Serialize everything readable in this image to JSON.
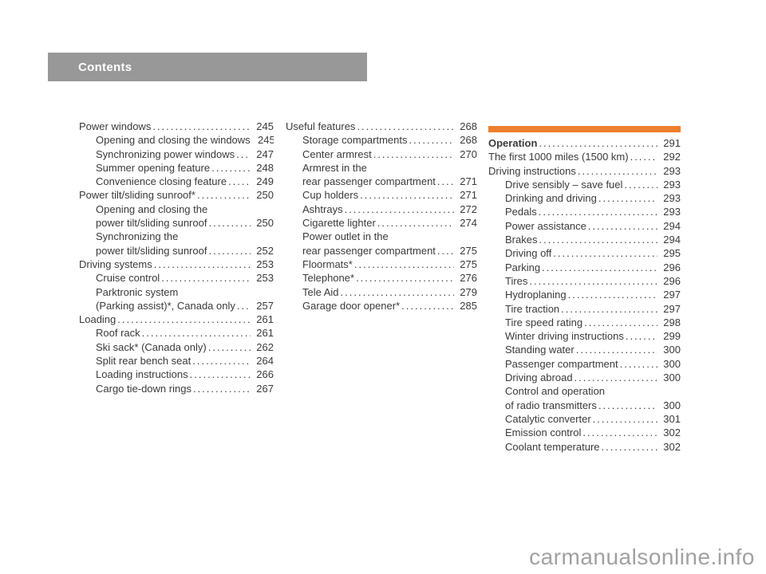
{
  "header": {
    "title": "Contents"
  },
  "watermark": "carmanualsonline.info",
  "colors": {
    "header_bg": "#989898",
    "header_text": "#ffffff",
    "accent_orange": "#ee7f2d",
    "body_text": "#3a3a3a",
    "watermark_text": "#a1a1a1"
  },
  "columns": [
    {
      "accent_bar": false,
      "entries": [
        {
          "label": "Power windows",
          "page": "245",
          "indent": 0
        },
        {
          "label": "Opening and closing the windows",
          "page": "245",
          "indent": 1
        },
        {
          "label": "Synchronizing power windows",
          "page": "247",
          "indent": 1
        },
        {
          "label": "Summer opening feature",
          "page": "248",
          "indent": 1
        },
        {
          "label": "Convenience closing feature",
          "page": "249",
          "indent": 1
        },
        {
          "label": "Power tilt/sliding sunroof*",
          "page": "250",
          "indent": 0
        },
        {
          "label": "Opening and closing the",
          "page": null,
          "indent": 1
        },
        {
          "label": "power tilt/sliding sunroof",
          "page": "250",
          "indent": 1
        },
        {
          "label": "Synchronizing the",
          "page": null,
          "indent": 1
        },
        {
          "label": "power tilt/sliding sunroof",
          "page": "252",
          "indent": 1
        },
        {
          "label": "Driving systems",
          "page": "253",
          "indent": 0
        },
        {
          "label": "Cruise control",
          "page": "253",
          "indent": 1
        },
        {
          "label": "Parktronic system",
          "page": null,
          "indent": 1
        },
        {
          "label": "(Parking assist)*, Canada only",
          "page": "257",
          "indent": 1
        },
        {
          "label": "Loading",
          "page": "261",
          "indent": 0
        },
        {
          "label": "Roof rack",
          "page": "261",
          "indent": 1
        },
        {
          "label": "Ski sack* (Canada only)",
          "page": "262",
          "indent": 1
        },
        {
          "label": "Split rear bench seat",
          "page": "264",
          "indent": 1
        },
        {
          "label": "Loading instructions",
          "page": "266",
          "indent": 1
        },
        {
          "label": "Cargo tie-down rings",
          "page": "267",
          "indent": 1
        }
      ]
    },
    {
      "accent_bar": false,
      "entries": [
        {
          "label": "Useful features",
          "page": "268",
          "indent": 0
        },
        {
          "label": "Storage compartments",
          "page": "268",
          "indent": 1
        },
        {
          "label": "Center armrest",
          "page": "270",
          "indent": 1
        },
        {
          "label": "Armrest in the",
          "page": null,
          "indent": 1
        },
        {
          "label": "rear passenger compartment",
          "page": "271",
          "indent": 1
        },
        {
          "label": "Cup holders",
          "page": "271",
          "indent": 1
        },
        {
          "label": "Ashtrays",
          "page": "272",
          "indent": 1
        },
        {
          "label": "Cigarette lighter",
          "page": "274",
          "indent": 1
        },
        {
          "label": "Power outlet in the",
          "page": null,
          "indent": 1
        },
        {
          "label": "rear passenger compartment",
          "page": "275",
          "indent": 1
        },
        {
          "label": "Floormats*",
          "page": "275",
          "indent": 1
        },
        {
          "label": "Telephone*",
          "page": "276",
          "indent": 1
        },
        {
          "label": "Tele Aid",
          "page": "279",
          "indent": 1
        },
        {
          "label": "Garage door opener*",
          "page": "285",
          "indent": 1
        }
      ]
    },
    {
      "accent_bar": true,
      "entries": [
        {
          "label": "Operation",
          "page": "291",
          "indent": 0,
          "bold": true
        },
        {
          "label": "The first 1000 miles (1500 km)",
          "page": "292",
          "indent": 0
        },
        {
          "label": "Driving instructions",
          "page": "293",
          "indent": 0
        },
        {
          "label": "Drive sensibly – save fuel",
          "page": "293",
          "indent": 1
        },
        {
          "label": "Drinking and driving",
          "page": "293",
          "indent": 1
        },
        {
          "label": "Pedals",
          "page": "293",
          "indent": 1
        },
        {
          "label": "Power assistance",
          "page": "294",
          "indent": 1
        },
        {
          "label": "Brakes",
          "page": "294",
          "indent": 1
        },
        {
          "label": "Driving off",
          "page": "295",
          "indent": 1
        },
        {
          "label": "Parking",
          "page": "296",
          "indent": 1
        },
        {
          "label": "Tires",
          "page": "296",
          "indent": 1
        },
        {
          "label": "Hydroplaning",
          "page": "297",
          "indent": 1
        },
        {
          "label": "Tire traction",
          "page": "297",
          "indent": 1
        },
        {
          "label": "Tire speed rating",
          "page": "298",
          "indent": 1
        },
        {
          "label": "Winter driving instructions",
          "page": "299",
          "indent": 1
        },
        {
          "label": "Standing water",
          "page": "300",
          "indent": 1
        },
        {
          "label": "Passenger compartment",
          "page": "300",
          "indent": 1
        },
        {
          "label": "Driving abroad",
          "page": "300",
          "indent": 1
        },
        {
          "label": "Control and operation",
          "page": null,
          "indent": 1
        },
        {
          "label": "of radio transmitters",
          "page": "300",
          "indent": 1
        },
        {
          "label": "Catalytic converter",
          "page": "301",
          "indent": 1
        },
        {
          "label": "Emission control",
          "page": "302",
          "indent": 1
        },
        {
          "label": "Coolant temperature",
          "page": "302",
          "indent": 1
        }
      ]
    }
  ]
}
